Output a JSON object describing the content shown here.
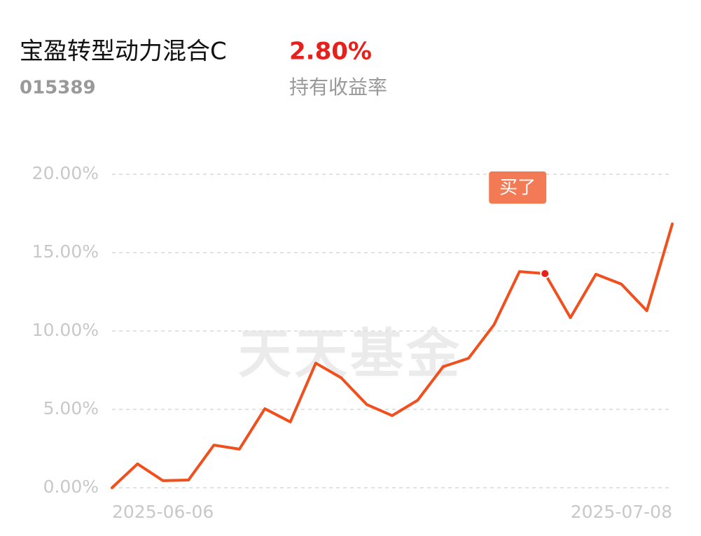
{
  "header": {
    "fund_name": "宝盈转型动力混合C",
    "fund_code": "015389",
    "return": "2.80%",
    "return_label": "持有收益率"
  },
  "chart_data": {
    "type": "line",
    "watermark": "天天基金",
    "categories": [
      "2025-06-06",
      null,
      null,
      null,
      null,
      null,
      null,
      null,
      null,
      null,
      null,
      null,
      null,
      null,
      null,
      null,
      null,
      null,
      null,
      null,
      null,
      null,
      "2025-07-08"
    ],
    "series": [
      {
        "color": "#f0501e",
        "values": [
          0,
          1.52,
          0.45,
          0.49,
          2.72,
          2.46,
          5.04,
          4.2,
          7.95,
          7.01,
          5.31,
          4.6,
          5.58,
          7.72,
          8.26,
          10.4,
          13.79,
          13.66,
          10.85,
          13.62,
          12.99,
          11.29,
          16.83
        ]
      }
    ],
    "ylim": [
      0,
      20
    ],
    "yticks": [
      {
        "value": 0,
        "label": "0.00%"
      },
      {
        "value": 5,
        "label": "5.00%"
      },
      {
        "value": 10,
        "label": "10.00%"
      },
      {
        "value": 15,
        "label": "15.00%"
      },
      {
        "value": 20,
        "label": "20.00%"
      }
    ],
    "grid": true,
    "annotation": {
      "text": "买了",
      "at": 17,
      "color": "#f27a55"
    }
  }
}
